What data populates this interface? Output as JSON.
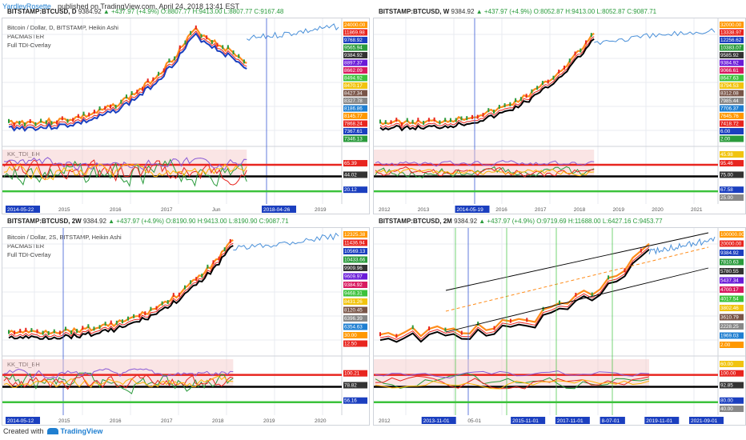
{
  "header": {
    "author": "YardleyRosette",
    "published": "published on TradingView.com, April 24, 2018 13:41 EST"
  },
  "footer": {
    "created_with": "Created with",
    "brand": "TradingView"
  },
  "colors": {
    "up": "#2a9b3c",
    "grid": "#e8ebf0",
    "indicator_red": "#e8251f",
    "indicator_green": "#3cc23c"
  },
  "panes": [
    {
      "ticker": "BITSTAMP:BTCUSD, D",
      "price": "9384.92",
      "change": "▲ +437.97 (+4.9%)",
      "ohlc": "O:8807.77 H:9413.00 L:8807.77 C:9167.48",
      "overlay": [
        "Bitcoin / Dollar, D, BITSTAMP, Heikin Ashi",
        "PACMASTER",
        "Full TDI-Overlay"
      ],
      "indicator_label": "KK_TDI_BH",
      "price_labels": [
        "24000.00",
        "11869.98",
        "9768.92",
        "9565.94",
        "9384.92",
        "8897.37",
        "8662.09",
        "8494.92",
        "8470.17",
        "8427.34",
        "8327.78",
        "8186.86",
        "8145.77",
        "7868.24",
        "7367.61",
        "7346.13"
      ],
      "ind_labels": [
        "65.39",
        "44.02",
        "20.12"
      ],
      "x_labels": [
        "2014-05-22",
        "2015",
        "2016",
        "2017",
        "Jun",
        "2018-04-26",
        "2019"
      ]
    },
    {
      "ticker": "BITSTAMP:BTCUSD, W",
      "price": "9384.92",
      "change": "▲ +437.97 (+4.9%)",
      "ohlc": "O:8052.87 H:9413.00 L:8052.87 C:9087.71",
      "overlay": [],
      "indicator_label": "",
      "price_labels": [
        "32000.00",
        "13338.97",
        "12256.62",
        "10383.07",
        "9585.92",
        "9384.92",
        "9066.61",
        "8647.63",
        "8794.53",
        "8312.08",
        "7985.44",
        "7706.37",
        "7645.76",
        "7418.72",
        "6.00",
        "2.00"
      ],
      "ind_labels": [
        "95.46",
        "75.00",
        "67.58",
        "45.98",
        "25.00"
      ],
      "x_labels": [
        "2012",
        "2013",
        "2014-05-19",
        "2016",
        "2017",
        "2018",
        "2019",
        "2020",
        "2021"
      ]
    },
    {
      "ticker": "BITSTAMP:BTCUSD, 2W",
      "price": "9384.92",
      "change": "▲ +437.97 (+4.9%)",
      "ohlc": "O:8190.90 H:9413.00 L:8190.90 C:9087.71",
      "overlay": [
        "Bitcoin / Dollar, 2S, BITSTAMP, Heikin Ashi",
        "PACMASTER",
        "Full TDI-Overlay"
      ],
      "indicator_label": "KK_TDI_BH",
      "price_labels": [
        "12325.38",
        "11436.94",
        "10569.13",
        "10433.66",
        "9909.96",
        "9609.97",
        "9384.92",
        "9468.31",
        "8431.26",
        "8120.45",
        "6396.39",
        "6354.63",
        "30.00",
        "12.50"
      ],
      "ind_labels": [
        "100.21",
        "78.82",
        "56.16"
      ],
      "x_labels": [
        "2014-05-12",
        "2015",
        "2016",
        "2017",
        "2018",
        "2019",
        "2020"
      ]
    },
    {
      "ticker": "BITSTAMP:BTCUSD, 2M",
      "price": "9384.92",
      "change": "▲ +437.97 (+4.9%)",
      "ohlc": "O:9719.69 H:11688.00 L:6427.16 C:9453.77",
      "overlay": [],
      "indicator_label": "",
      "price_labels": [
        "100000.00",
        "20000.00",
        "9384.92",
        "7810.63",
        "5780.55",
        "5437.34",
        "4700.17",
        "4017.54",
        "3802.46",
        "3610.79",
        "2228.25",
        "1969.03",
        "2.00"
      ],
      "ind_labels": [
        "100.00",
        "92.85",
        "80.00",
        "60.00",
        "40.00"
      ],
      "x_labels": [
        "2012",
        "2013-11-01",
        "05-01",
        "2015-11-01",
        "2017-11-01",
        "8-07-01",
        "2019-11-01",
        "2021-09-01"
      ]
    }
  ]
}
